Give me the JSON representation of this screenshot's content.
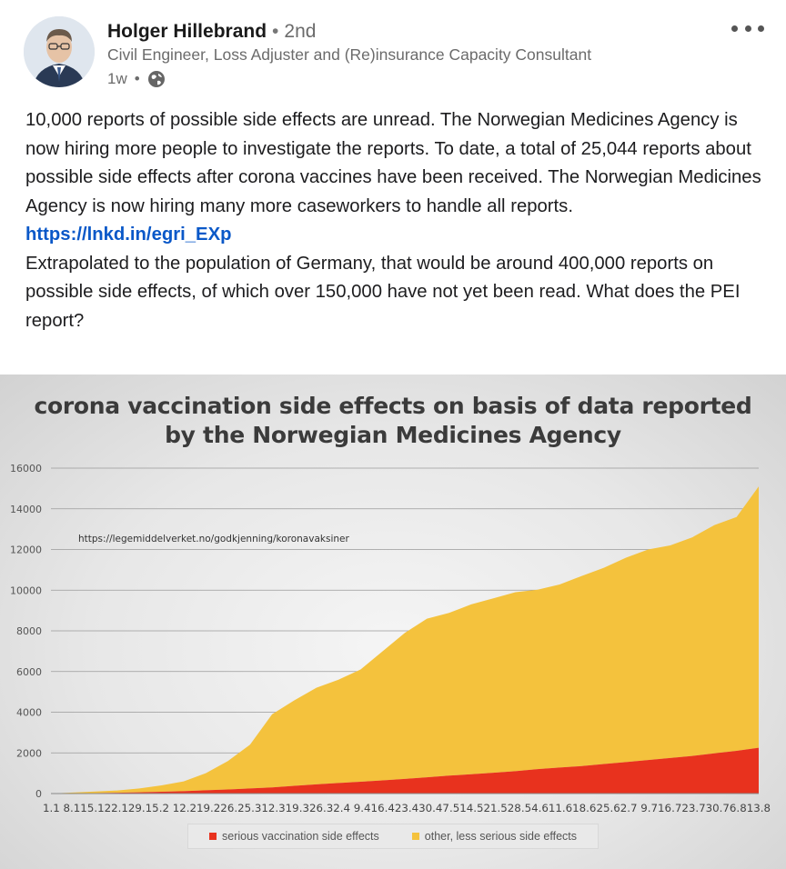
{
  "author": {
    "name": "Holger Hillebrand",
    "separator": "•",
    "degree": "2nd",
    "headline": "Civil Engineer, Loss Adjuster and (Re)insurance Capacity Consultant",
    "time": "1w",
    "meta_dot": "•",
    "visibility_icon": "globe-icon"
  },
  "more_icon": "ellipsis-icon",
  "post": {
    "paragraph1": "10,000 reports of possible side effects are unread. The Norwegian Medicines Agency is now hiring more people to investigate the reports. To date, a total of 25,044 reports about possible side effects after corona vaccines have been received. The Norwegian Medicines Agency is now hiring many more caseworkers to handle all reports.",
    "link": "https://lnkd.in/egri_EXp",
    "paragraph2": "Extrapolated to the population of Germany, that would be around 400,000 reports on possible side effects, of which over 150,000 have not yet been read. What does the PEI report?"
  },
  "colors": {
    "serious": "#e8321e",
    "other": "#f4c23d",
    "link": "#0a58c8"
  },
  "chart_data": {
    "type": "area",
    "title_line1": "corona vaccination side effects on basis of data reported",
    "title_line2": "by the Norwegian Medicines Agency",
    "source_annotation": "https://legemiddelverket.no/godkjenning/koronavaksiner",
    "stacked": true,
    "ylim": [
      0,
      16000
    ],
    "yticks": [
      0,
      2000,
      4000,
      6000,
      8000,
      10000,
      12000,
      14000,
      16000
    ],
    "ytick_labels": [
      "0",
      "2000",
      "4000",
      "6000",
      "8000",
      "10000",
      "12000",
      "14000",
      "16000"
    ],
    "gridlines": true,
    "categories": [
      "1.1",
      "8.1",
      "15.1",
      "22.1",
      "29.1",
      "5.2",
      "12.2",
      "19.2",
      "26.2",
      "5.3",
      "12.3",
      "19.3",
      "26.3",
      "2.4",
      "9.4",
      "16.4",
      "23.4",
      "30.4",
      "7.5",
      "14.5",
      "21.5",
      "28.5",
      "4.6",
      "11.6",
      "18.6",
      "25.6",
      "2.7",
      "9.7",
      "16.7",
      "23.7",
      "30.7",
      "6.8",
      "13.8"
    ],
    "xtick_text": "1.1 8.115.122.129.15.2 12.219.226.25.312.319.326.32.4 9.416.423.430.47.514.521.528.54.611.618.625.62.7 9.716.723.730.76.813.8",
    "series": [
      {
        "name": "serious vaccination side effects",
        "color": "#e8321e",
        "values": [
          0,
          10,
          25,
          40,
          60,
          90,
          120,
          160,
          200,
          250,
          300,
          380,
          450,
          520,
          580,
          650,
          720,
          800,
          880,
          950,
          1020,
          1100,
          1200,
          1280,
          1350,
          1450,
          1550,
          1650,
          1750,
          1850,
          1980,
          2100,
          2250
        ]
      },
      {
        "name": "other, less serious side effects",
        "color": "#f4c23d",
        "values": [
          0,
          40,
          75,
          110,
          190,
          310,
          480,
          840,
          1400,
          2150,
          3600,
          4200,
          4750,
          5080,
          5520,
          6350,
          7180,
          7800,
          8000,
          8350,
          8580,
          8800,
          8820,
          9000,
          9350,
          9650,
          10050,
          10350,
          10450,
          10750,
          11220,
          11500,
          12850
        ]
      }
    ],
    "legend_position": "bottom"
  }
}
